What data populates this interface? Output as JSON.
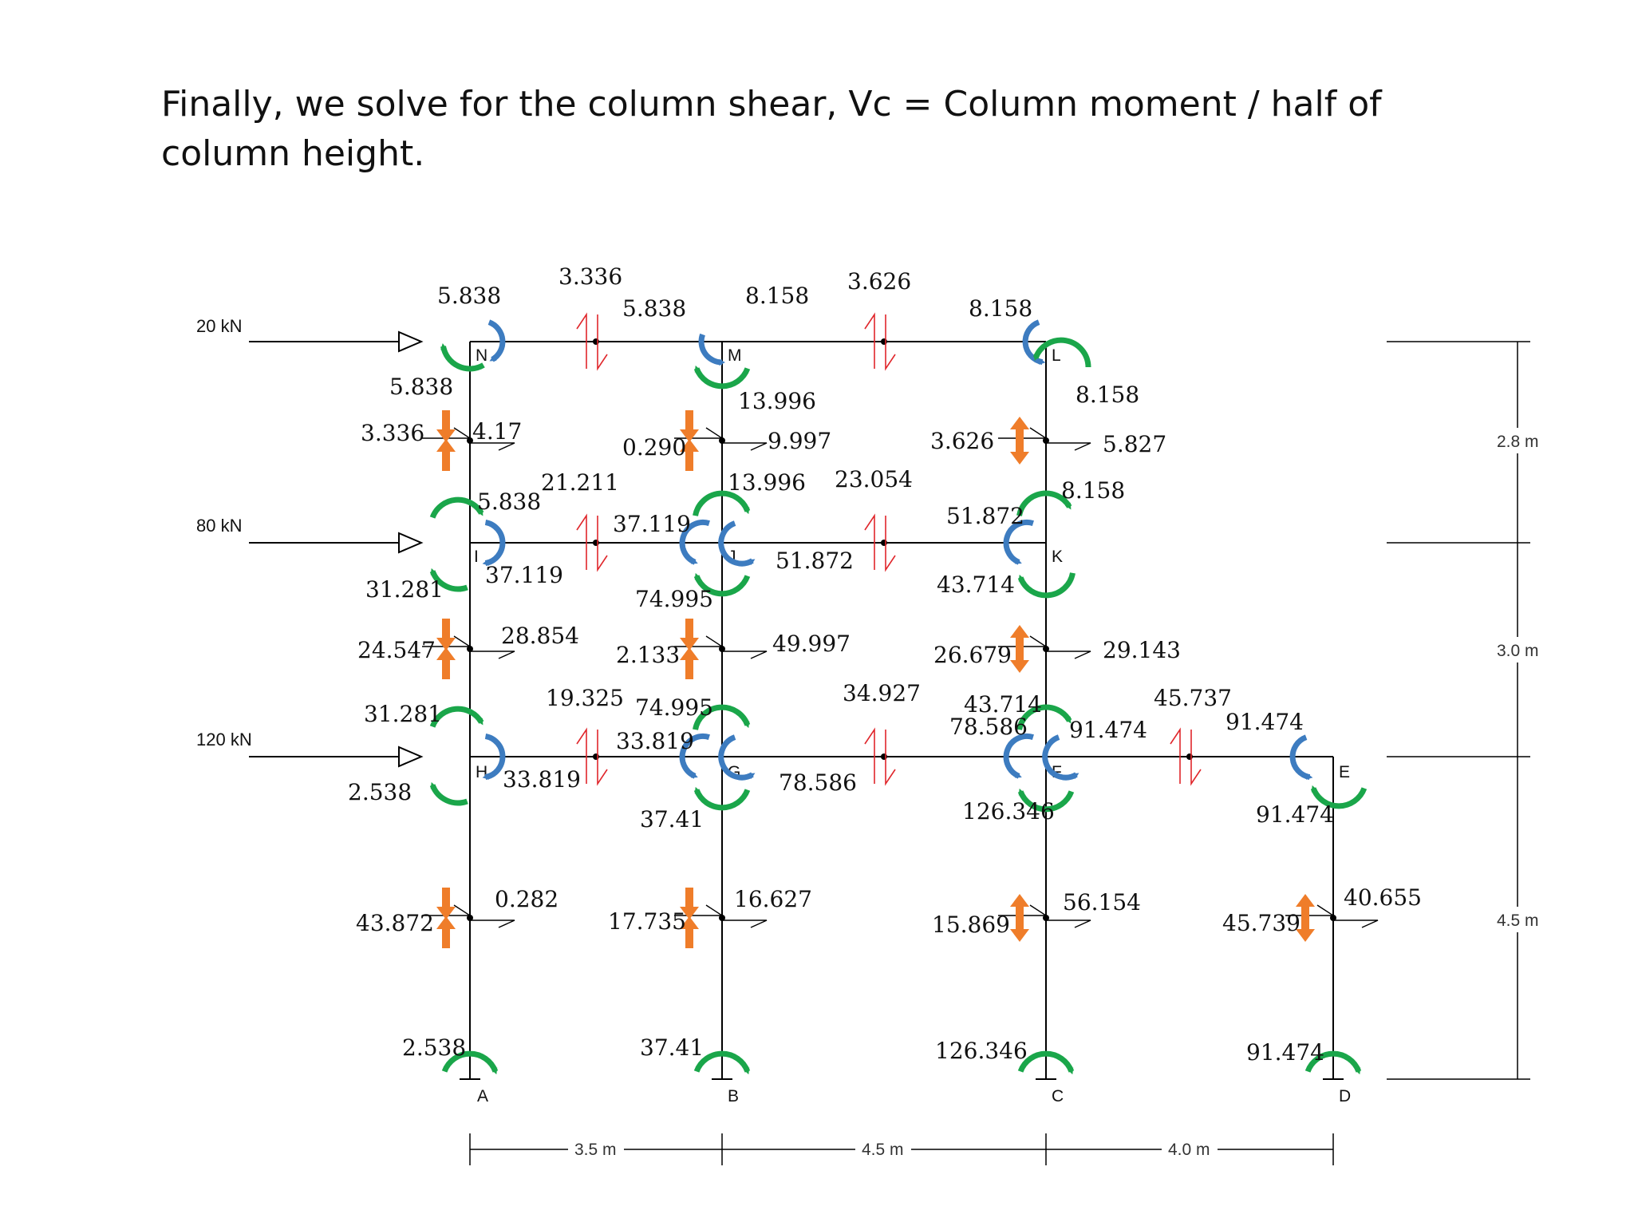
{
  "heading": "Finally, we solve for the column shear, Vc = Column moment / half of column height.",
  "colors": {
    "green": "#1aa64a",
    "blue": "#3d7cc0",
    "orange": "#ef7d2a",
    "red": "#e0262b",
    "frame": "#000000"
  },
  "nodes": {
    "N": "N",
    "M": "M",
    "L": "L",
    "I": "I",
    "J": "J",
    "K": "K",
    "H": "H",
    "G": "G",
    "F": "F",
    "E": "E",
    "A": "A",
    "B": "B",
    "C": "C",
    "D": "D"
  },
  "loads": {
    "roof": "20 kN",
    "second": "80 kN",
    "first": "120 kN"
  },
  "dimensions": {
    "bay_ab": "3.5 m",
    "bay_bc": "4.5 m",
    "bay_cd": "4.0 m",
    "story_top": "2.8 m",
    "story_mid": "3.0 m",
    "story_bottom": "4.5 m"
  },
  "values": {
    "beam_nm_shear": "3.336",
    "beam_ml_shear": "3.626",
    "moment_n_top": "5.838",
    "moment_m_left": "5.838",
    "moment_m_right": "8.158",
    "moment_l_top": "8.158",
    "moment_n_bottom": "5.838",
    "moment_m_bottom": "13.996",
    "moment_l_bottom": "8.158",
    "col_ni_left": "3.336",
    "col_ni_right": "4.17",
    "col_mj_left": "0.290",
    "col_mj_right": "9.997",
    "col_lk_left": "3.626",
    "col_lk_right": "5.827",
    "beam_ij_shear": "21.211",
    "beam_jk_shear": "23.054",
    "moment_i_top": "5.838",
    "moment_j_top": "13.996",
    "moment_k_top": "8.158",
    "moment_i_left": "37.119",
    "moment_j_left": "37.119",
    "moment_j_right": "51.872",
    "moment_k_left": "51.872",
    "moment_i_bottom": "31.281",
    "moment_j_bottom": "74.995",
    "moment_k_bottom": "43.714",
    "col_ih_left": "24.547",
    "col_ih_right": "28.854",
    "col_jg_left": "2.133",
    "col_jg_right": "49.997",
    "col_kf_left": "26.679",
    "col_kf_right": "29.143",
    "beam_hg_shear": "19.325",
    "beam_gf_shear": "34.927",
    "beam_fe_shear": "45.737",
    "moment_h_top": "31.281",
    "moment_g_top": "74.995",
    "moment_f_top": "43.714",
    "moment_h_right": "33.819",
    "moment_g_left": "33.819",
    "moment_g_right": "78.586",
    "moment_f_left": "78.586",
    "moment_f_right": "91.474",
    "moment_e_left": "91.474",
    "moment_h_bottom": "2.538",
    "moment_g_bottom": "37.41",
    "moment_f_bottom": "126.346",
    "moment_e_bottom": "91.474",
    "col_ha_left": "43.872",
    "col_ha_right": "0.282",
    "col_gb_left": "17.735",
    "col_gb_right": "16.627",
    "col_fc_left": "15.869",
    "col_fc_right": "56.154",
    "col_ed_left": "45.739",
    "col_ed_right": "40.655",
    "moment_a": "2.538",
    "moment_b": "37.41",
    "moment_c": "126.346",
    "moment_d": "91.474"
  }
}
